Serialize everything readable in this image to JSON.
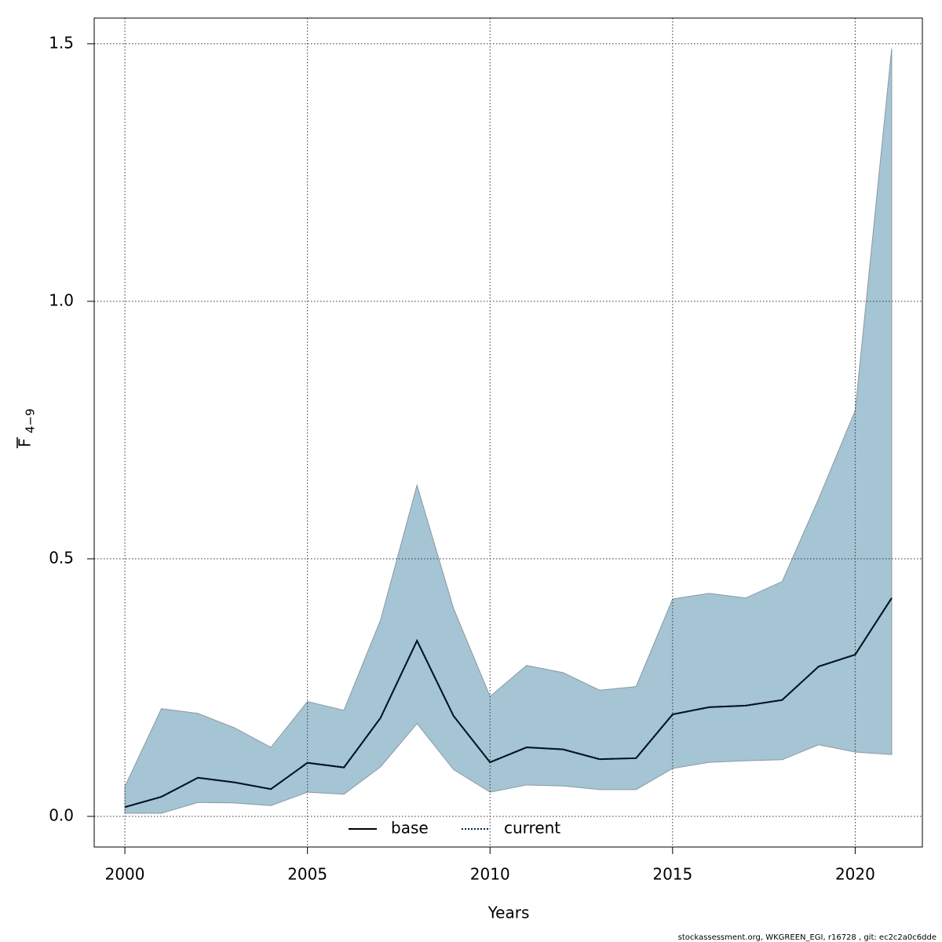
{
  "chart_data": {
    "type": "line",
    "x_label": "Years",
    "y_label": "F",
    "y_label_sub": "4−9",
    "footer": "stockassessment.org, WKGREEN_EGI, r16728 , git: ec2c2a0c6dde",
    "x": [
      2000,
      2001,
      2002,
      2003,
      2004,
      2005,
      2006,
      2007,
      2008,
      2009,
      2010,
      2011,
      2012,
      2013,
      2014,
      2015,
      2016,
      2017,
      2018,
      2019,
      2020,
      2021
    ],
    "series": [
      {
        "name": "base",
        "color": "#000000",
        "dash": false,
        "values": [
          0.018,
          0.038,
          0.075,
          0.066,
          0.053,
          0.104,
          0.095,
          0.191,
          0.341,
          0.195,
          0.105,
          0.134,
          0.13,
          0.111,
          0.113,
          0.198,
          0.212,
          0.215,
          0.226,
          0.291,
          0.314,
          0.424
        ]
      },
      {
        "name": "current",
        "color": "#00264d",
        "dash": true,
        "values": [
          0.018,
          0.038,
          0.075,
          0.066,
          0.053,
          0.104,
          0.095,
          0.191,
          0.341,
          0.195,
          0.105,
          0.134,
          0.13,
          0.111,
          0.113,
          0.198,
          0.212,
          0.215,
          0.226,
          0.291,
          0.314,
          0.424
        ]
      }
    ],
    "band": {
      "color": "#a5c4d4",
      "upper": [
        0.058,
        0.209,
        0.2,
        0.172,
        0.134,
        0.223,
        0.206,
        0.381,
        0.643,
        0.404,
        0.233,
        0.293,
        0.279,
        0.245,
        0.252,
        0.422,
        0.433,
        0.424,
        0.456,
        0.617,
        0.788,
        1.491
      ],
      "lower": [
        0.006,
        0.006,
        0.027,
        0.026,
        0.021,
        0.047,
        0.043,
        0.096,
        0.18,
        0.091,
        0.047,
        0.061,
        0.059,
        0.052,
        0.052,
        0.093,
        0.105,
        0.108,
        0.11,
        0.139,
        0.125,
        0.12
      ]
    },
    "xlim": [
      1999.16,
      2021.84
    ],
    "ylim": [
      -0.0595,
      1.55
    ],
    "xticks": [
      2000,
      2005,
      2010,
      2015,
      2020
    ],
    "yticks": [
      {
        "value": 0,
        "label": "0.0"
      },
      0.5,
      {
        "value": 1,
        "label": "1.0"
      },
      1.5
    ],
    "grid": true,
    "legend": "bottom"
  }
}
